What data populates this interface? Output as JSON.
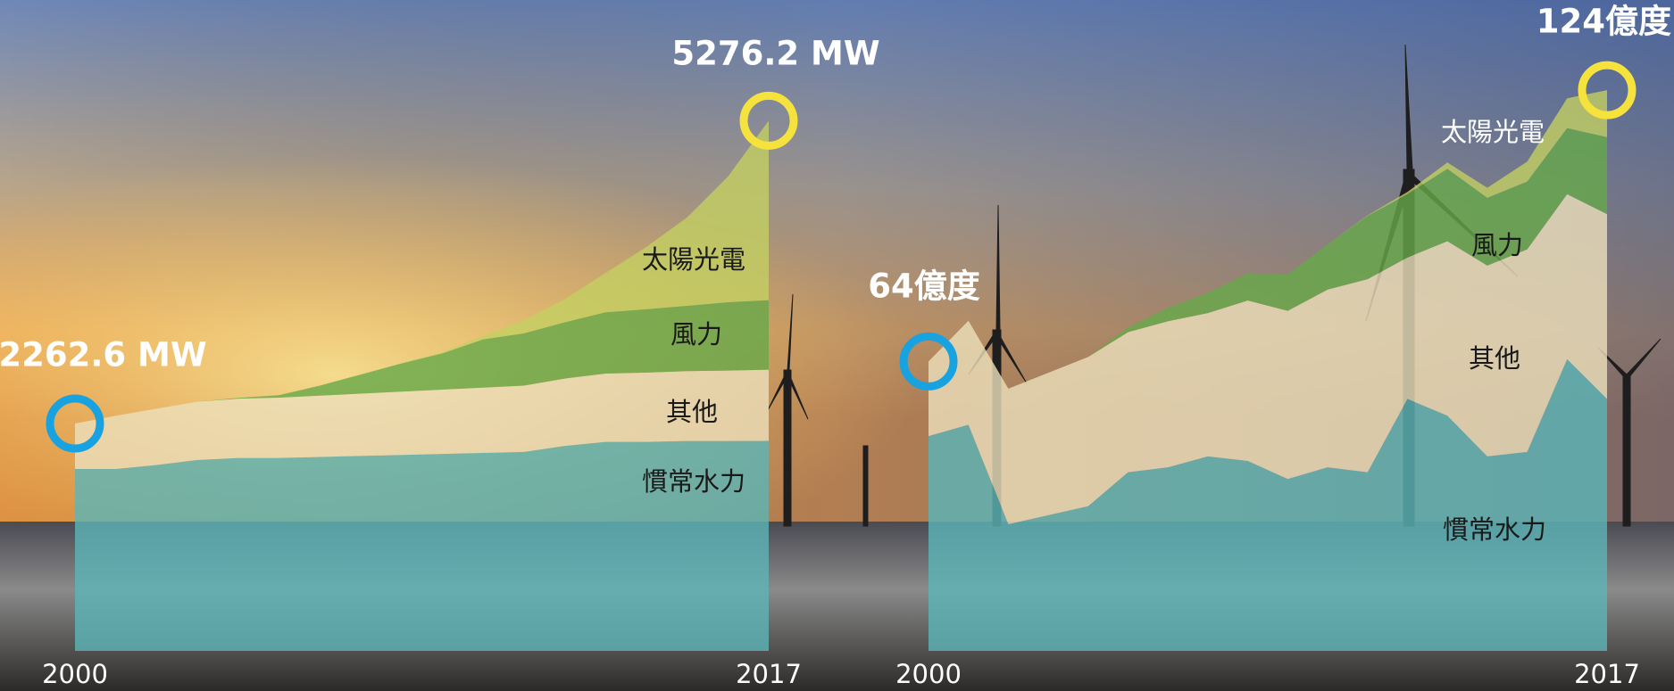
{
  "chart_data": [
    {
      "type": "area",
      "stacked": true,
      "categories": [
        "2000",
        null,
        null,
        null,
        null,
        null,
        null,
        null,
        null,
        null,
        null,
        null,
        null,
        null,
        null,
        null,
        null,
        "2017"
      ],
      "series": [
        {
          "name": "慣常水力",
          "color": "#5bb5b8",
          "values": [
            1810,
            1810,
            1850,
            1900,
            1920,
            1920,
            1930,
            1940,
            1950,
            1960,
            1970,
            1980,
            2040,
            2080,
            2080,
            2089,
            2089,
            2090
          ]
        },
        {
          "name": "其他",
          "color": "#ece0bc",
          "values": [
            452.6,
            530,
            560,
            580,
            590,
            600,
            610,
            620,
            630,
            640,
            650,
            660,
            670,
            680,
            690,
            695,
            700,
            708
          ]
        },
        {
          "name": "風力",
          "color": "#66a94a",
          "values": [
            0,
            0,
            0,
            0,
            8,
            24,
            100,
            190,
            280,
            360,
            480,
            520,
            560,
            610,
            630,
            650,
            680,
            692
          ]
        },
        {
          "name": "太陽光電",
          "color": "#c3cf62",
          "values": [
            0,
            0,
            0,
            0,
            1,
            1,
            1,
            2,
            4,
            9,
            34,
            130,
            230,
            390,
            620,
            880,
            1250,
            1786.2
          ]
        }
      ],
      "ylim": [
        0,
        6300
      ],
      "start_annotation": "2262.6 MW",
      "end_annotation": "5276.2 MW"
    },
    {
      "type": "area",
      "stacked": true,
      "categories": [
        "2000",
        null,
        null,
        null,
        null,
        null,
        null,
        null,
        null,
        null,
        null,
        null,
        null,
        null,
        null,
        null,
        null,
        "2017"
      ],
      "series": [
        {
          "name": "慣常水力",
          "color": "#5bb5b8",
          "values": [
            47.5,
            50,
            28,
            30,
            32,
            39.5,
            40.6,
            43,
            42,
            38,
            40.6,
            39.5,
            55.7,
            52,
            43,
            44,
            64.5,
            55.7
          ]
        },
        {
          "name": "其他",
          "color": "#ece0bc",
          "values": [
            16.5,
            23,
            30,
            31.5,
            33,
            31,
            32.3,
            31.7,
            35.5,
            37.2,
            39.3,
            42.7,
            31.3,
            38.6,
            42.2,
            44.8,
            36.5,
            40.9
          ]
        },
        {
          "name": "風力",
          "color": "#66a94a",
          "values": [
            0,
            0,
            0,
            0,
            0,
            1,
            3,
            4.5,
            6,
            8,
            10,
            14,
            14,
            16,
            15,
            15,
            14.6,
            17
          ]
        },
        {
          "name": "太陽光電",
          "color": "#c3cf62",
          "values": [
            0,
            0,
            0,
            0,
            0,
            0,
            0,
            0,
            0,
            0,
            0,
            0.1,
            0.5,
            1.4,
            2.2,
            4.4,
            6.6,
            10.4
          ]
        }
      ],
      "ylim": [
        0,
        140
      ],
      "start_annotation": "64億度",
      "end_annotation": "124億度"
    }
  ]
}
